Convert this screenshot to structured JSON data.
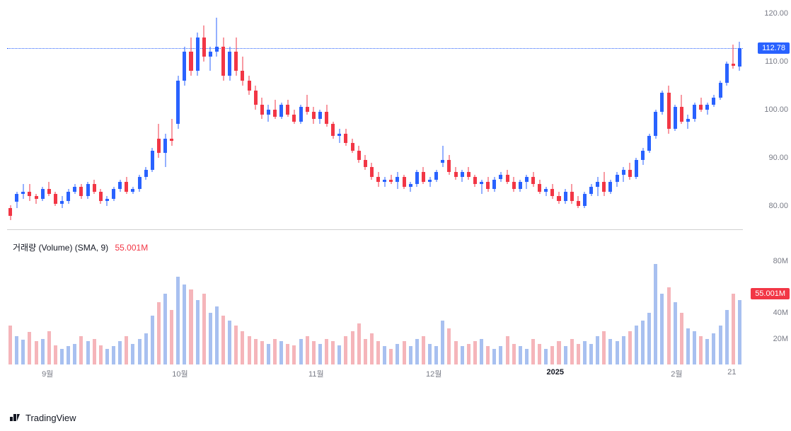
{
  "brand": "TradingView",
  "colors": {
    "up": "#2962ff",
    "down": "#f23645",
    "up_vol": "#a8c0f0",
    "down_vol": "#f5b5ba",
    "axis_text": "#787b86",
    "bg": "#ffffff",
    "price_line": "#2962ff"
  },
  "price": {
    "ymin": 75,
    "ymax": 122,
    "ticks": [
      80,
      90,
      100,
      110,
      120
    ],
    "current": 112.78,
    "badge_bg": "#2962ff"
  },
  "volume": {
    "ymax": 85,
    "ticks": [
      20,
      40,
      80
    ],
    "legend_label": "거래량 (Volume) (SMA, 9)",
    "legend_value": "55.001M",
    "badge_value": "55.001M",
    "badge_bg": "#f23645"
  },
  "x_axis": {
    "labels": [
      {
        "pos": 0.055,
        "text": "9월",
        "bold": false
      },
      {
        "pos": 0.235,
        "text": "10월",
        "bold": false
      },
      {
        "pos": 0.42,
        "text": "11월",
        "bold": false
      },
      {
        "pos": 0.58,
        "text": "12월",
        "bold": false
      },
      {
        "pos": 0.745,
        "text": "2025",
        "bold": true
      },
      {
        "pos": 0.91,
        "text": "2월",
        "bold": false
      },
      {
        "pos": 0.985,
        "text": "21",
        "bold": false
      }
    ]
  },
  "candles": [
    {
      "o": 79.5,
      "h": 80.2,
      "l": 77.0,
      "c": 78.0,
      "v": 30,
      "d": -1
    },
    {
      "o": 80.8,
      "h": 83.0,
      "l": 79.5,
      "c": 82.5,
      "v": 22,
      "d": 1
    },
    {
      "o": 82.5,
      "h": 84.5,
      "l": 81.5,
      "c": 83.0,
      "v": 19,
      "d": 1
    },
    {
      "o": 83.0,
      "h": 84.5,
      "l": 81.0,
      "c": 82.0,
      "v": 25,
      "d": -1
    },
    {
      "o": 82.0,
      "h": 82.5,
      "l": 80.5,
      "c": 81.5,
      "v": 18,
      "d": -1
    },
    {
      "o": 81.5,
      "h": 84.0,
      "l": 81.0,
      "c": 83.5,
      "v": 20,
      "d": 1
    },
    {
      "o": 83.5,
      "h": 85.0,
      "l": 82.0,
      "c": 82.5,
      "v": 26,
      "d": -1
    },
    {
      "o": 82.5,
      "h": 83.0,
      "l": 80.0,
      "c": 80.5,
      "v": 15,
      "d": -1
    },
    {
      "o": 80.5,
      "h": 82.0,
      "l": 79.5,
      "c": 81.0,
      "v": 12,
      "d": 1
    },
    {
      "o": 81.0,
      "h": 83.5,
      "l": 80.5,
      "c": 83.0,
      "v": 14,
      "d": 1
    },
    {
      "o": 83.0,
      "h": 84.5,
      "l": 82.5,
      "c": 84.0,
      "v": 16,
      "d": 1
    },
    {
      "o": 84.0,
      "h": 84.5,
      "l": 81.5,
      "c": 82.0,
      "v": 22,
      "d": -1
    },
    {
      "o": 82.0,
      "h": 85.0,
      "l": 81.5,
      "c": 84.5,
      "v": 18,
      "d": 1
    },
    {
      "o": 84.5,
      "h": 85.5,
      "l": 82.5,
      "c": 83.0,
      "v": 20,
      "d": -1
    },
    {
      "o": 83.0,
      "h": 83.5,
      "l": 80.5,
      "c": 81.0,
      "v": 15,
      "d": -1
    },
    {
      "o": 81.0,
      "h": 82.0,
      "l": 80.0,
      "c": 81.5,
      "v": 12,
      "d": 1
    },
    {
      "o": 81.5,
      "h": 84.0,
      "l": 81.0,
      "c": 83.5,
      "v": 14,
      "d": 1
    },
    {
      "o": 83.5,
      "h": 85.5,
      "l": 83.0,
      "c": 85.0,
      "v": 18,
      "d": 1
    },
    {
      "o": 85.0,
      "h": 86.0,
      "l": 82.5,
      "c": 83.0,
      "v": 22,
      "d": -1
    },
    {
      "o": 83.0,
      "h": 84.0,
      "l": 82.5,
      "c": 83.5,
      "v": 16,
      "d": 1
    },
    {
      "o": 83.5,
      "h": 86.5,
      "l": 83.0,
      "c": 86.0,
      "v": 20,
      "d": 1
    },
    {
      "o": 86.0,
      "h": 88.0,
      "l": 85.5,
      "c": 87.5,
      "v": 24,
      "d": 1
    },
    {
      "o": 87.5,
      "h": 92.0,
      "l": 87.0,
      "c": 91.5,
      "v": 38,
      "d": 1
    },
    {
      "o": 94.0,
      "h": 97.0,
      "l": 90.0,
      "c": 91.0,
      "v": 48,
      "d": -1
    },
    {
      "o": 91.0,
      "h": 95.0,
      "l": 88.0,
      "c": 94.0,
      "v": 55,
      "d": 1
    },
    {
      "o": 94.0,
      "h": 98.0,
      "l": 92.5,
      "c": 93.5,
      "v": 42,
      "d": -1
    },
    {
      "o": 97.0,
      "h": 107.0,
      "l": 96.0,
      "c": 106.0,
      "v": 68,
      "d": 1
    },
    {
      "o": 106.0,
      "h": 113.0,
      "l": 105.0,
      "c": 112.0,
      "v": 62,
      "d": 1
    },
    {
      "o": 112.0,
      "h": 115.0,
      "l": 107.0,
      "c": 108.0,
      "v": 58,
      "d": -1
    },
    {
      "o": 108.0,
      "h": 116.0,
      "l": 107.0,
      "c": 115.0,
      "v": 50,
      "d": 1
    },
    {
      "o": 115.0,
      "h": 117.5,
      "l": 110.0,
      "c": 111.0,
      "v": 55,
      "d": -1
    },
    {
      "o": 111.0,
      "h": 113.0,
      "l": 108.0,
      "c": 112.0,
      "v": 40,
      "d": 1
    },
    {
      "o": 112.0,
      "h": 119.0,
      "l": 111.0,
      "c": 113.0,
      "v": 45,
      "d": 1
    },
    {
      "o": 113.0,
      "h": 115.0,
      "l": 106.0,
      "c": 107.0,
      "v": 38,
      "d": -1
    },
    {
      "o": 107.0,
      "h": 113.0,
      "l": 106.0,
      "c": 112.0,
      "v": 34,
      "d": 1
    },
    {
      "o": 112.0,
      "h": 115.0,
      "l": 107.0,
      "c": 108.0,
      "v": 30,
      "d": -1
    },
    {
      "o": 108.0,
      "h": 111.0,
      "l": 105.0,
      "c": 106.0,
      "v": 26,
      "d": -1
    },
    {
      "o": 106.0,
      "h": 107.0,
      "l": 103.0,
      "c": 104.0,
      "v": 22,
      "d": -1
    },
    {
      "o": 104.0,
      "h": 105.0,
      "l": 100.0,
      "c": 101.0,
      "v": 20,
      "d": -1
    },
    {
      "o": 101.0,
      "h": 102.5,
      "l": 98.0,
      "c": 99.0,
      "v": 18,
      "d": -1
    },
    {
      "o": 99.0,
      "h": 101.0,
      "l": 97.5,
      "c": 100.0,
      "v": 16,
      "d": 1
    },
    {
      "o": 100.0,
      "h": 102.0,
      "l": 98.0,
      "c": 98.5,
      "v": 20,
      "d": -1
    },
    {
      "o": 98.5,
      "h": 101.5,
      "l": 98.0,
      "c": 101.0,
      "v": 18,
      "d": 1
    },
    {
      "o": 101.0,
      "h": 102.0,
      "l": 98.5,
      "c": 99.0,
      "v": 16,
      "d": -1
    },
    {
      "o": 99.0,
      "h": 100.0,
      "l": 97.0,
      "c": 97.5,
      "v": 15,
      "d": -1
    },
    {
      "o": 97.5,
      "h": 101.0,
      "l": 97.0,
      "c": 100.5,
      "v": 20,
      "d": 1
    },
    {
      "o": 100.5,
      "h": 103.0,
      "l": 99.0,
      "c": 99.5,
      "v": 22,
      "d": -1
    },
    {
      "o": 99.5,
      "h": 100.5,
      "l": 97.0,
      "c": 98.0,
      "v": 18,
      "d": -1
    },
    {
      "o": 98.0,
      "h": 100.0,
      "l": 97.0,
      "c": 99.5,
      "v": 16,
      "d": 1
    },
    {
      "o": 99.5,
      "h": 101.0,
      "l": 96.5,
      "c": 97.0,
      "v": 20,
      "d": -1
    },
    {
      "o": 97.0,
      "h": 97.5,
      "l": 94.0,
      "c": 94.5,
      "v": 18,
      "d": -1
    },
    {
      "o": 94.5,
      "h": 96.0,
      "l": 93.0,
      "c": 95.0,
      "v": 15,
      "d": 1
    },
    {
      "o": 95.0,
      "h": 96.0,
      "l": 92.5,
      "c": 93.0,
      "v": 22,
      "d": -1
    },
    {
      "o": 93.0,
      "h": 94.0,
      "l": 91.0,
      "c": 91.5,
      "v": 26,
      "d": -1
    },
    {
      "o": 91.5,
      "h": 92.5,
      "l": 89.0,
      "c": 89.5,
      "v": 32,
      "d": -1
    },
    {
      "o": 89.5,
      "h": 90.5,
      "l": 87.5,
      "c": 88.0,
      "v": 20,
      "d": -1
    },
    {
      "o": 88.0,
      "h": 89.0,
      "l": 85.5,
      "c": 86.0,
      "v": 24,
      "d": -1
    },
    {
      "o": 86.0,
      "h": 87.0,
      "l": 84.0,
      "c": 85.0,
      "v": 18,
      "d": -1
    },
    {
      "o": 85.0,
      "h": 86.0,
      "l": 84.0,
      "c": 85.5,
      "v": 14,
      "d": 1
    },
    {
      "o": 85.5,
      "h": 86.5,
      "l": 84.5,
      "c": 85.0,
      "v": 12,
      "d": -1
    },
    {
      "o": 85.0,
      "h": 87.0,
      "l": 83.5,
      "c": 86.0,
      "v": 16,
      "d": 1
    },
    {
      "o": 86.0,
      "h": 86.5,
      "l": 83.5,
      "c": 84.0,
      "v": 18,
      "d": -1
    },
    {
      "o": 84.0,
      "h": 85.0,
      "l": 83.0,
      "c": 84.5,
      "v": 14,
      "d": 1
    },
    {
      "o": 84.5,
      "h": 87.5,
      "l": 84.0,
      "c": 87.0,
      "v": 20,
      "d": 1
    },
    {
      "o": 87.0,
      "h": 88.0,
      "l": 84.5,
      "c": 85.0,
      "v": 22,
      "d": -1
    },
    {
      "o": 85.0,
      "h": 86.0,
      "l": 84.0,
      "c": 85.5,
      "v": 16,
      "d": 1
    },
    {
      "o": 85.5,
      "h": 87.5,
      "l": 85.0,
      "c": 87.0,
      "v": 14,
      "d": 1
    },
    {
      "o": 89.0,
      "h": 92.5,
      "l": 88.0,
      "c": 89.5,
      "v": 34,
      "d": 1
    },
    {
      "o": 89.5,
      "h": 90.5,
      "l": 86.5,
      "c": 87.0,
      "v": 28,
      "d": -1
    },
    {
      "o": 87.0,
      "h": 88.0,
      "l": 85.5,
      "c": 86.0,
      "v": 18,
      "d": -1
    },
    {
      "o": 86.0,
      "h": 87.5,
      "l": 85.0,
      "c": 87.0,
      "v": 14,
      "d": 1
    },
    {
      "o": 87.0,
      "h": 88.0,
      "l": 85.5,
      "c": 86.0,
      "v": 16,
      "d": -1
    },
    {
      "o": 86.0,
      "h": 86.5,
      "l": 84.0,
      "c": 84.5,
      "v": 18,
      "d": -1
    },
    {
      "o": 84.5,
      "h": 85.5,
      "l": 82.5,
      "c": 85.0,
      "v": 20,
      "d": 1
    },
    {
      "o": 85.0,
      "h": 86.0,
      "l": 83.0,
      "c": 83.5,
      "v": 14,
      "d": -1
    },
    {
      "o": 83.5,
      "h": 86.0,
      "l": 83.0,
      "c": 85.5,
      "v": 12,
      "d": 1
    },
    {
      "o": 85.5,
      "h": 87.0,
      "l": 85.0,
      "c": 86.5,
      "v": 14,
      "d": 1
    },
    {
      "o": 86.5,
      "h": 87.5,
      "l": 84.5,
      "c": 85.0,
      "v": 22,
      "d": -1
    },
    {
      "o": 85.0,
      "h": 86.0,
      "l": 83.0,
      "c": 83.5,
      "v": 16,
      "d": -1
    },
    {
      "o": 83.5,
      "h": 85.5,
      "l": 83.0,
      "c": 85.0,
      "v": 14,
      "d": 1
    },
    {
      "o": 85.0,
      "h": 86.5,
      "l": 83.5,
      "c": 86.0,
      "v": 12,
      "d": 1
    },
    {
      "o": 86.0,
      "h": 87.0,
      "l": 84.0,
      "c": 84.5,
      "v": 20,
      "d": -1
    },
    {
      "o": 84.5,
      "h": 85.5,
      "l": 82.5,
      "c": 83.0,
      "v": 16,
      "d": -1
    },
    {
      "o": 83.0,
      "h": 84.0,
      "l": 82.0,
      "c": 83.5,
      "v": 12,
      "d": 1
    },
    {
      "o": 83.5,
      "h": 84.5,
      "l": 81.5,
      "c": 82.0,
      "v": 14,
      "d": -1
    },
    {
      "o": 82.0,
      "h": 83.0,
      "l": 80.5,
      "c": 81.0,
      "v": 18,
      "d": -1
    },
    {
      "o": 81.0,
      "h": 83.5,
      "l": 80.5,
      "c": 83.0,
      "v": 14,
      "d": 1
    },
    {
      "o": 83.0,
      "h": 84.5,
      "l": 80.5,
      "c": 81.0,
      "v": 20,
      "d": -1
    },
    {
      "o": 81.0,
      "h": 82.0,
      "l": 79.5,
      "c": 80.0,
      "v": 16,
      "d": -1
    },
    {
      "o": 80.0,
      "h": 83.0,
      "l": 79.5,
      "c": 82.5,
      "v": 18,
      "d": 1
    },
    {
      "o": 82.5,
      "h": 84.5,
      "l": 82.0,
      "c": 84.0,
      "v": 16,
      "d": 1
    },
    {
      "o": 84.0,
      "h": 86.0,
      "l": 82.0,
      "c": 85.0,
      "v": 22,
      "d": 1
    },
    {
      "o": 85.0,
      "h": 87.0,
      "l": 82.0,
      "c": 83.0,
      "v": 26,
      "d": -1
    },
    {
      "o": 83.0,
      "h": 85.5,
      "l": 82.5,
      "c": 85.0,
      "v": 20,
      "d": 1
    },
    {
      "o": 85.0,
      "h": 87.0,
      "l": 84.0,
      "c": 86.5,
      "v": 18,
      "d": 1
    },
    {
      "o": 86.5,
      "h": 88.0,
      "l": 85.0,
      "c": 87.5,
      "v": 22,
      "d": 1
    },
    {
      "o": 87.5,
      "h": 89.0,
      "l": 85.5,
      "c": 86.0,
      "v": 26,
      "d": -1
    },
    {
      "o": 86.0,
      "h": 90.0,
      "l": 85.5,
      "c": 89.5,
      "v": 30,
      "d": 1
    },
    {
      "o": 89.5,
      "h": 92.0,
      "l": 88.5,
      "c": 91.5,
      "v": 34,
      "d": 1
    },
    {
      "o": 91.5,
      "h": 95.0,
      "l": 91.0,
      "c": 94.5,
      "v": 40,
      "d": 1
    },
    {
      "o": 94.5,
      "h": 100.0,
      "l": 94.0,
      "c": 99.5,
      "v": 78,
      "d": 1
    },
    {
      "o": 99.5,
      "h": 104.0,
      "l": 99.0,
      "c": 103.5,
      "v": 55,
      "d": 1
    },
    {
      "o": 103.5,
      "h": 105.0,
      "l": 95.0,
      "c": 96.0,
      "v": 60,
      "d": -1
    },
    {
      "o": 96.0,
      "h": 101.0,
      "l": 95.5,
      "c": 100.5,
      "v": 48,
      "d": 1
    },
    {
      "o": 100.5,
      "h": 103.0,
      "l": 97.0,
      "c": 97.5,
      "v": 40,
      "d": -1
    },
    {
      "o": 97.5,
      "h": 99.0,
      "l": 96.0,
      "c": 98.0,
      "v": 28,
      "d": 1
    },
    {
      "o": 98.0,
      "h": 101.5,
      "l": 97.5,
      "c": 101.0,
      "v": 26,
      "d": 1
    },
    {
      "o": 101.0,
      "h": 102.5,
      "l": 99.5,
      "c": 100.0,
      "v": 22,
      "d": -1
    },
    {
      "o": 100.0,
      "h": 101.5,
      "l": 99.0,
      "c": 101.0,
      "v": 20,
      "d": 1
    },
    {
      "o": 101.0,
      "h": 103.0,
      "l": 100.5,
      "c": 102.5,
      "v": 24,
      "d": 1
    },
    {
      "o": 102.5,
      "h": 106.0,
      "l": 102.0,
      "c": 105.5,
      "v": 30,
      "d": 1
    },
    {
      "o": 105.5,
      "h": 110.0,
      "l": 105.0,
      "c": 109.5,
      "v": 42,
      "d": 1
    },
    {
      "o": 109.5,
      "h": 113.5,
      "l": 108.5,
      "c": 109.0,
      "v": 55,
      "d": -1
    },
    {
      "o": 109.0,
      "h": 114.0,
      "l": 108.0,
      "c": 112.78,
      "v": 50,
      "d": 1
    }
  ]
}
